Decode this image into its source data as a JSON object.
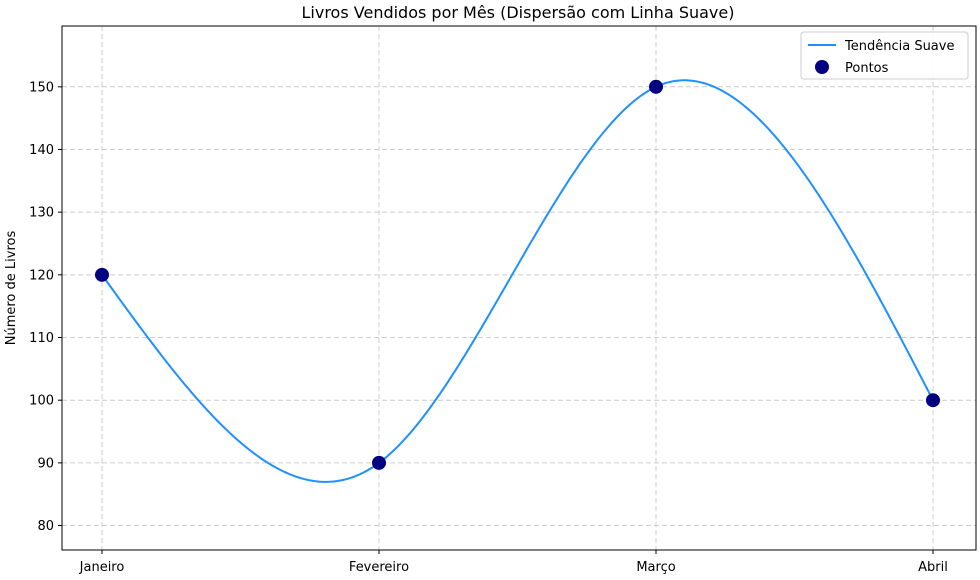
{
  "chart_data": {
    "type": "scatter",
    "title": "Livros Vendidos por Mês (Dispersão com Linha Suave)",
    "xlabel": "",
    "ylabel": "Número de Livros",
    "categories": [
      "Janeiro",
      "Fevereiro",
      "Março",
      "Abril"
    ],
    "y_ticks": [
      80,
      90,
      100,
      110,
      120,
      130,
      140,
      150
    ],
    "ylim": [
      76.1,
      159.7
    ],
    "grid": true,
    "legend_position": "top-right",
    "series": [
      {
        "name": "Tendência Suave",
        "kind": "smooth-line",
        "color": "#1E90FF",
        "values": [
          120,
          90,
          150,
          100
        ]
      },
      {
        "name": "Pontos",
        "kind": "markers",
        "color": "#000080",
        "values": [
          120,
          90,
          150,
          100
        ]
      }
    ]
  }
}
